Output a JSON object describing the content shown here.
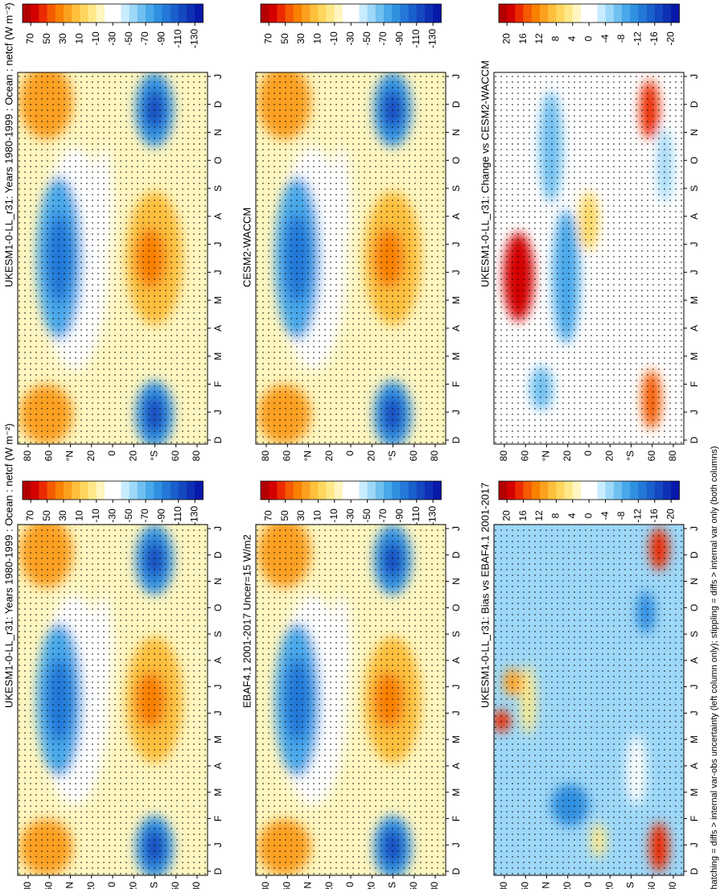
{
  "panels": [
    {
      "title": "UKESM1-0-LL_r31: Years 1980-1999 : Ocean : netcf (W m⁻²)",
      "colorbar": [
        70,
        50,
        30,
        10,
        -10,
        -30,
        -50,
        -70,
        -90,
        -110,
        -130
      ]
    },
    {
      "title": "CESM2-WACCM",
      "colorbar": [
        70,
        50,
        30,
        10,
        -10,
        -30,
        -50,
        -70,
        -90,
        -110,
        -130
      ]
    },
    {
      "title": "UKESM1-0-LL_r31: Change vs CESM2-WACCM",
      "colorbar": [
        20,
        16,
        12,
        8,
        4,
        0,
        -4,
        -8,
        -12,
        -16,
        -20
      ]
    },
    {
      "title": "UKESM1-0-LL_r31: Years 1980-1999 : Ocean : netcf (W m⁻²)",
      "colorbar": [
        70,
        50,
        30,
        10,
        -10,
        -30,
        -50,
        -70,
        -90,
        -110,
        -130
      ]
    },
    {
      "title": "EBAF4.1 2001-2017 Uncer=15 W/m2",
      "colorbar": [
        70,
        50,
        30,
        10,
        -10,
        -30,
        -50,
        -70,
        -90,
        -110,
        -130
      ]
    },
    {
      "title": "UKESM1-0-LL_r31: Bias vs EBAF4.1 2001-2017",
      "colorbar": [
        20,
        16,
        12,
        8,
        4,
        0,
        -4,
        -8,
        -12,
        -16,
        -20
      ]
    }
  ],
  "month_labels": [
    "D",
    "J",
    "F",
    "M",
    "A",
    "M",
    "J",
    "J",
    "A",
    "S",
    "O",
    "N",
    "D",
    "J"
  ],
  "lat_labels": [
    "80",
    "60",
    "°N",
    "20",
    "0",
    "20",
    "°S",
    "60",
    "80"
  ],
  "footnote": "hatching = diffs > internal var-obs uncertainty (left column only); stippling = diffs > internal var only (both columns)",
  "palette": [
    "#b30000",
    "#d40000",
    "#ec2a00",
    "#f55a00",
    "#f98000",
    "#fca020",
    "#fdbf3c",
    "#fed65e",
    "#fee98a",
    "#fff6c0",
    "#ffffff",
    "#ffffff",
    "#c8ecff",
    "#9ed8f8",
    "#70c0f0",
    "#48a8ea",
    "#3090e0",
    "#2478d8",
    "#1a60cc",
    "#1448c0",
    "#0e30b4",
    "#0818a8"
  ]
}
